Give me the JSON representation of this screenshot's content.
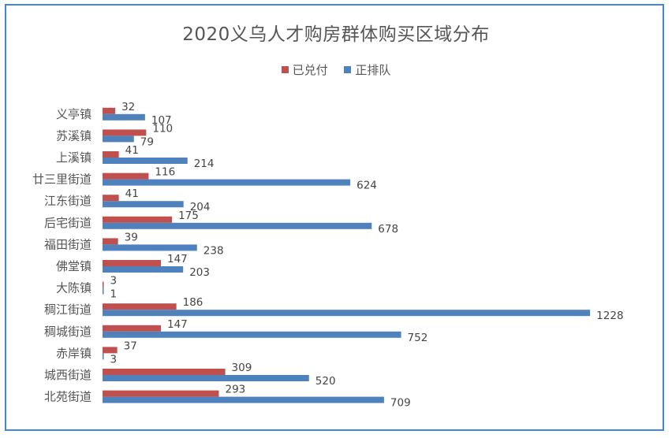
{
  "chart_data": {
    "type": "bar",
    "orientation": "horizontal",
    "title": "2020义乌人才购房群体购买区域分布",
    "categories": [
      "义亭镇",
      "苏溪镇",
      "上溪镇",
      "廿三里街道",
      "江东街道",
      "后宅街道",
      "福田街道",
      "佛堂镇",
      "大陈镇",
      "稠江街道",
      "稠城街道",
      "赤岸镇",
      "城西街道",
      "北苑街道"
    ],
    "series": [
      {
        "name": "已兑付",
        "color": "#c0504d",
        "values": [
          32,
          110,
          41,
          116,
          41,
          175,
          39,
          147,
          3,
          186,
          147,
          37,
          309,
          293
        ]
      },
      {
        "name": "正排队",
        "color": "#4f81bd",
        "values": [
          107,
          79,
          214,
          624,
          204,
          678,
          238,
          203,
          1,
          1228,
          752,
          3,
          520,
          709
        ]
      }
    ],
    "xlim": [
      0,
      1228
    ],
    "grid": false,
    "legend_position": "top"
  }
}
